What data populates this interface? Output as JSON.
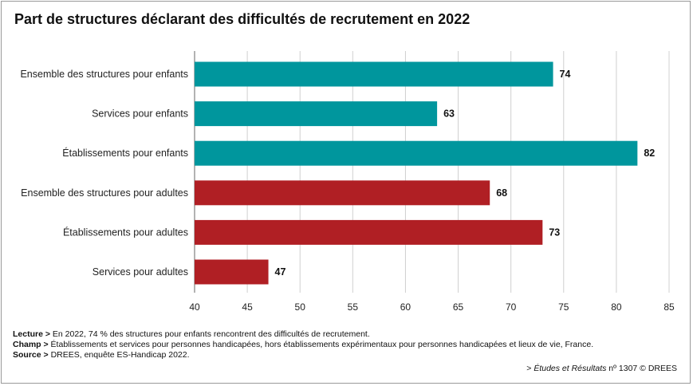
{
  "chart_data": {
    "type": "bar",
    "orientation": "horizontal",
    "title": "Part de structures déclarant des difficultés de recrutement en 2022",
    "categories": [
      "Ensemble des structures pour enfants",
      "Services pour enfants",
      "Établissements pour enfants",
      "Ensemble des structures pour adultes",
      "Établissements pour adultes",
      "Services pour adultes"
    ],
    "values": [
      74,
      63,
      82,
      68,
      73,
      47
    ],
    "data_labels": [
      "74",
      "63",
      "82",
      "68",
      "73",
      "47"
    ],
    "bar_colors": [
      "#00969d",
      "#00969d",
      "#00969d",
      "#b01f24",
      "#b01f24",
      "#b01f24"
    ],
    "xlim": [
      40,
      85
    ],
    "xticks": [
      40,
      45,
      50,
      55,
      60,
      65,
      70,
      75,
      80,
      85
    ],
    "grid": true
  },
  "notes": {
    "lecture_label": "Lecture >",
    "lecture_text": " En 2022, 74 % des structures pour enfants rencontrent des difficultés de recrutement.",
    "champ_label": "Champ >",
    "champ_text": " Établissements et services pour personnes handicapées, hors établissements expérimentaux pour personnes handicapées et lieux de vie, France.",
    "source_label": "Source >",
    "source_text": " DREES, enquête ES-Handicap 2022."
  },
  "credit": {
    "prefix": "> ",
    "publication": "Études et Résultats",
    "number": " nº 1307 © DREES"
  }
}
